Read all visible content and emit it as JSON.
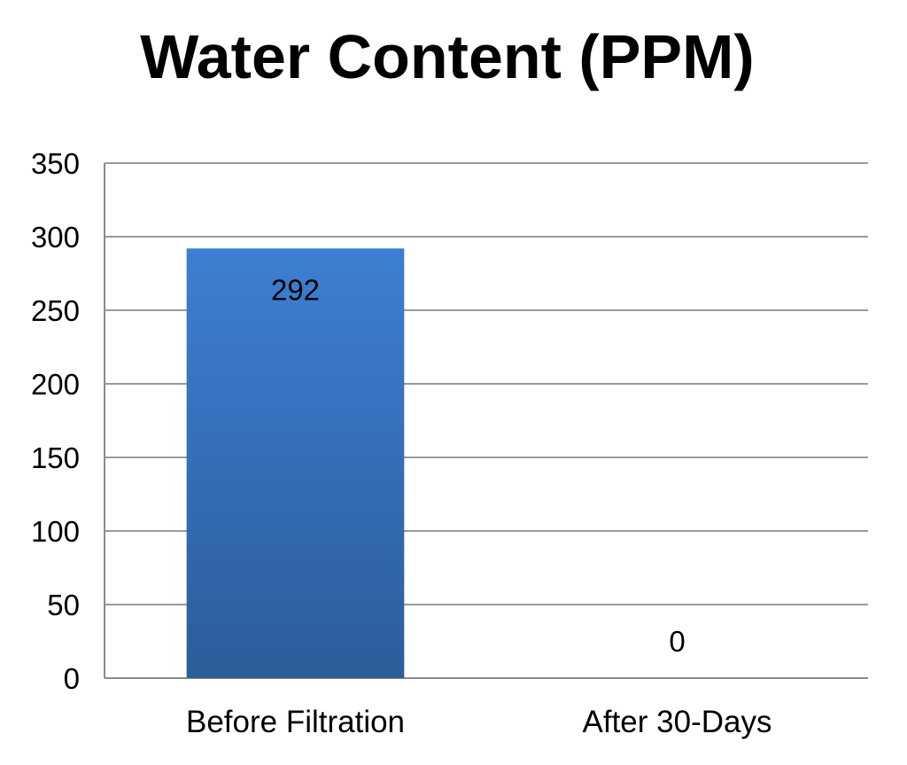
{
  "chart_data": {
    "type": "bar",
    "title": "Water Content (PPM)",
    "xlabel": "",
    "ylabel": "",
    "categories": [
      "Before Filtration",
      "After 30-Days"
    ],
    "values": [
      292,
      0
    ],
    "data_labels": [
      "292",
      "0"
    ],
    "ylim": [
      0,
      350
    ],
    "yticks": [
      0,
      50,
      100,
      150,
      200,
      250,
      300,
      350
    ],
    "ytick_labels": [
      "0",
      "50",
      "100",
      "150",
      "200",
      "250",
      "300",
      "350"
    ],
    "grid": true,
    "legend": "none",
    "bar_color_top": "#3d7fd2",
    "bar_color_bottom": "#2c5d9a"
  }
}
